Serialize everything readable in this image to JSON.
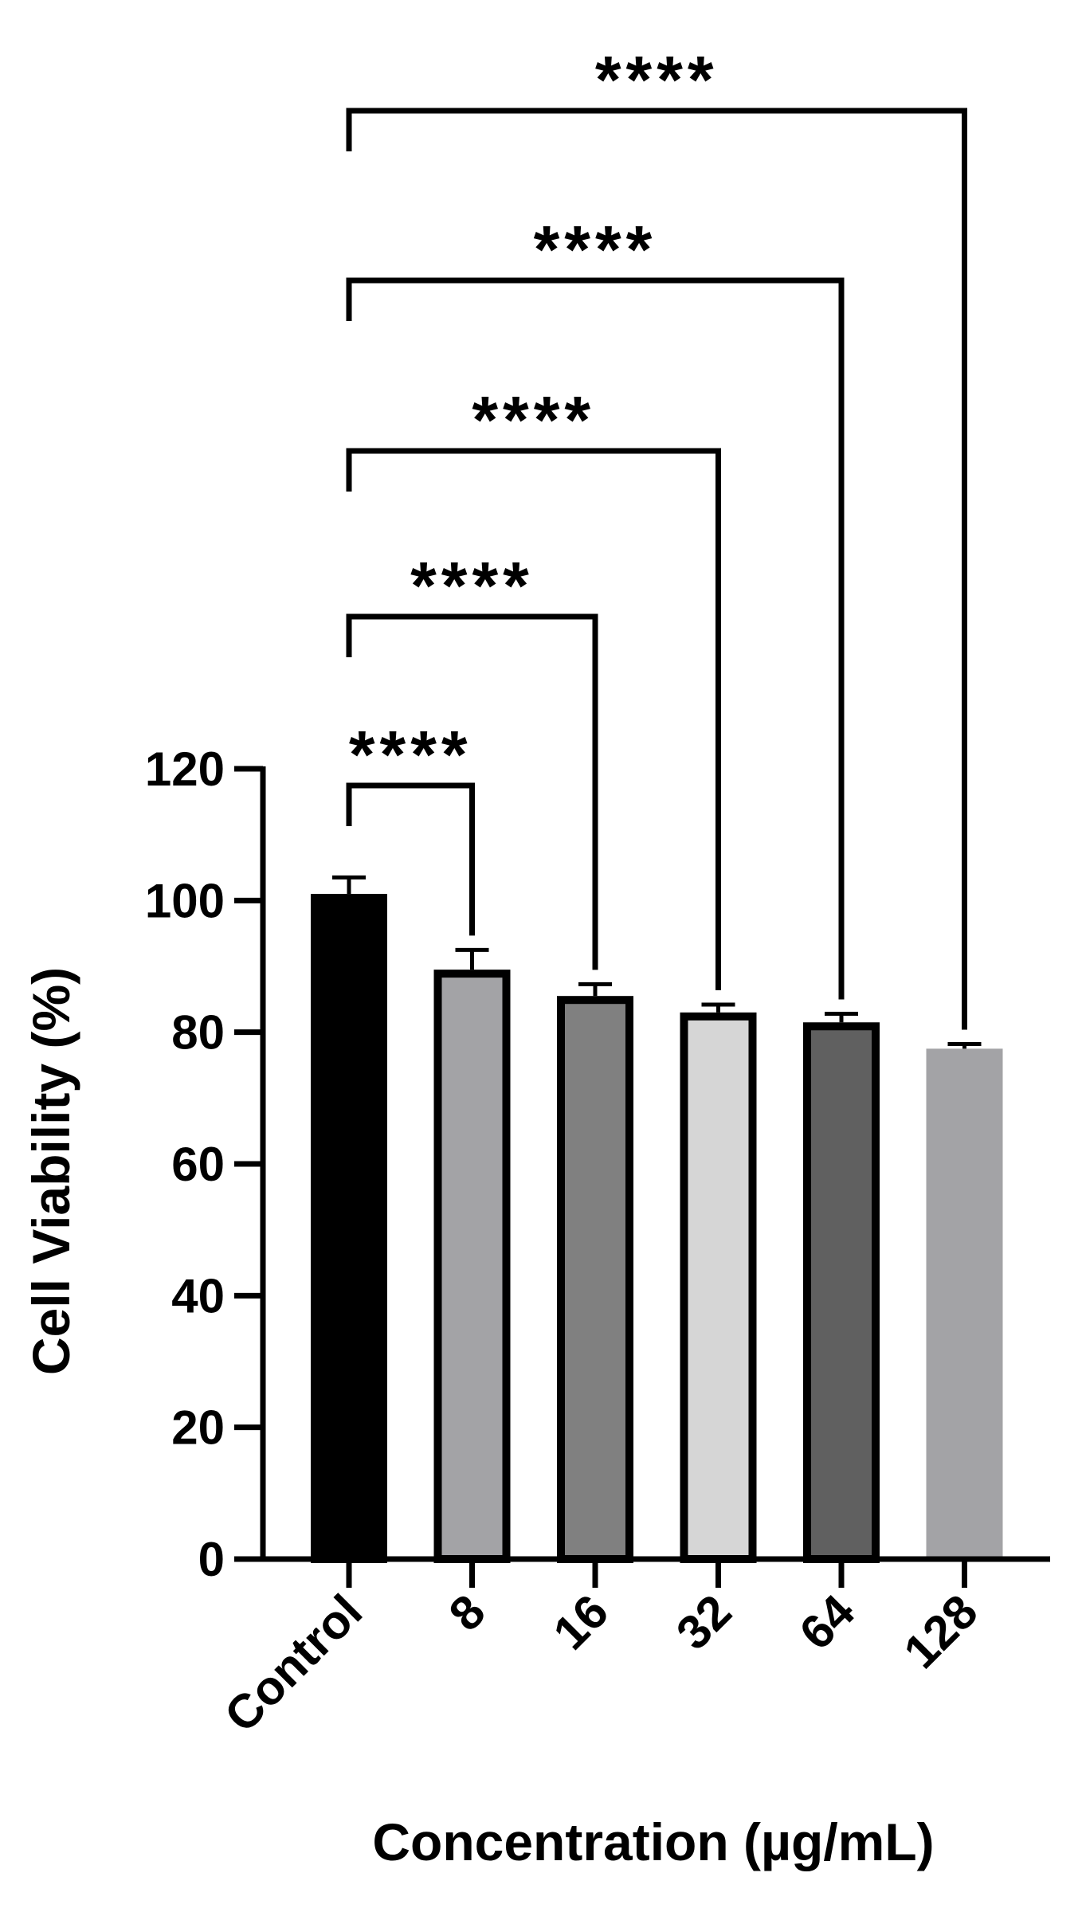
{
  "chart_data": {
    "type": "bar",
    "title": "",
    "xlabel": "Concentration (µg/mL)",
    "ylabel": "Cell Viability (%)",
    "categories": [
      "Control",
      "8",
      "16",
      "32",
      "64",
      "128"
    ],
    "values": [
      101,
      89.5,
      85.5,
      83,
      81.5,
      77.5
    ],
    "errors": [
      2.5,
      3,
      1.8,
      1.2,
      1.3,
      0.7
    ],
    "bar_fills": [
      "#000000",
      "#a3a3a6",
      "#808080",
      "#d6d6d6",
      "#606060",
      "#a3a3a6"
    ],
    "bar_outlined": [
      true,
      true,
      true,
      true,
      true,
      false
    ],
    "ylim": [
      0,
      120
    ],
    "yticks": [
      "0",
      "20",
      "40",
      "60",
      "80",
      "100",
      "120"
    ],
    "grid": false,
    "legend": "none",
    "significance": [
      {
        "from": "Control",
        "to": "8",
        "label": "****"
      },
      {
        "from": "Control",
        "to": "16",
        "label": "****"
      },
      {
        "from": "Control",
        "to": "32",
        "label": "****"
      },
      {
        "from": "Control",
        "to": "64",
        "label": "****"
      },
      {
        "from": "Control",
        "to": "128",
        "label": "****"
      }
    ]
  }
}
